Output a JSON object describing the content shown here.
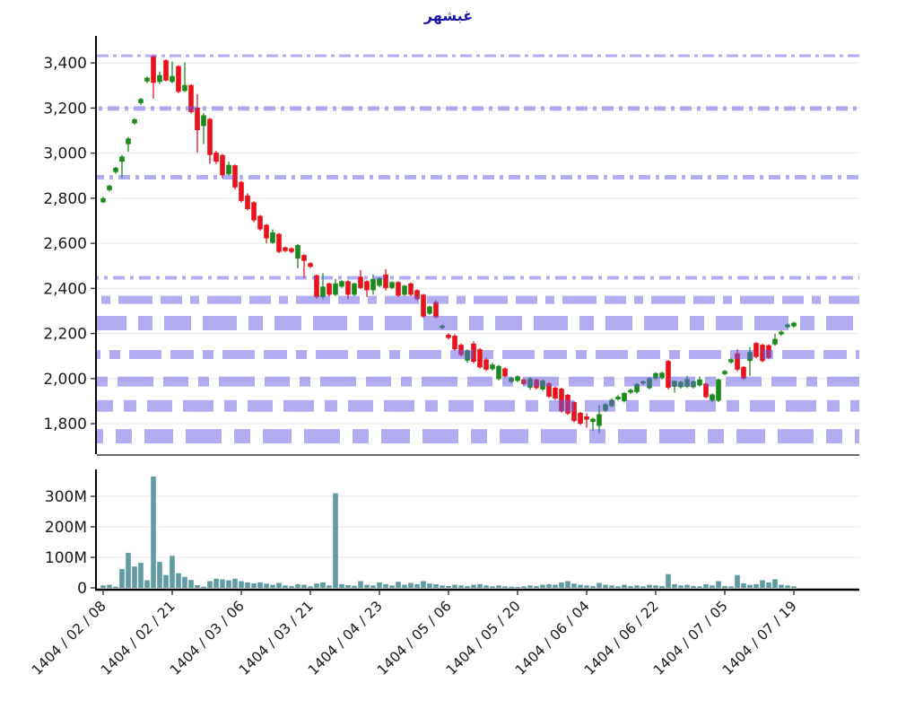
{
  "title": "غبشهر",
  "chart_data": {
    "type": "candlestick",
    "title": "غبشهر",
    "x_tick_labels": [
      "1404 / 02 / 08",
      "1404 / 02 / 21",
      "1404 / 03 / 06",
      "1404 / 03 / 21",
      "1404 / 04 / 23",
      "1404 / 05 / 06",
      "1404 / 05 / 20",
      "1404 / 06 / 04",
      "1404 / 06 / 22",
      "1404 / 07 / 05",
      "1404 / 07 / 19"
    ],
    "x_tick_indices": [
      0,
      11,
      22,
      33,
      44,
      55,
      66,
      77,
      88,
      99,
      110
    ],
    "price_axis": {
      "min": 1665,
      "max": 3520,
      "ticks": [
        {
          "v": 1800,
          "label": "1,800"
        },
        {
          "v": 2000,
          "label": "2,000"
        },
        {
          "v": 2200,
          "label": "2,200"
        },
        {
          "v": 2400,
          "label": "2,400"
        },
        {
          "v": 2600,
          "label": "2,600"
        },
        {
          "v": 2800,
          "label": "2,800"
        },
        {
          "v": 3000,
          "label": "3,000"
        },
        {
          "v": 3200,
          "label": "3,200"
        },
        {
          "v": 3400,
          "label": "3,400"
        }
      ]
    },
    "volume_axis": {
      "min": 0,
      "max": 385,
      "unit": "M",
      "ticks": [
        {
          "v": 0,
          "label": "0"
        },
        {
          "v": 100,
          "label": "100M"
        },
        {
          "v": 200,
          "label": "200M"
        },
        {
          "v": 300,
          "label": "300M"
        }
      ]
    },
    "levels": [
      {
        "price": 3432,
        "width": 3,
        "dash": "13 5 4 5"
      },
      {
        "price": 3198,
        "width": 5,
        "dash": "13 6 4 6"
      },
      {
        "price": 2893,
        "width": 5,
        "dash": "13 6 4 6"
      },
      {
        "price": 2447,
        "width": 4,
        "dash": "13 6 4 6"
      },
      {
        "price": 2349,
        "width": 9,
        "dash": "24 9 10 9 38 9"
      },
      {
        "price": 2246,
        "width": 16,
        "dash": "38 13 16 13 30 13"
      },
      {
        "price": 2107,
        "width": 10,
        "dash": "26 10 12 10 36 10"
      },
      {
        "price": 1987,
        "width": 11,
        "dash": "28 11 12 11 40 11"
      },
      {
        "price": 1879,
        "width": 13,
        "dash": "34 12 14 12 28 12"
      },
      {
        "price": 1744,
        "width": 16,
        "dash": "40 14 18 14 32 14"
      }
    ],
    "candles": [
      [
        2782,
        2806,
        2778,
        2800
      ],
      [
        2836,
        2860,
        2830,
        2855
      ],
      [
        2916,
        2940,
        2908,
        2935
      ],
      [
        2962,
        2992,
        2890,
        2985
      ],
      [
        3040,
        3072,
        3006,
        3065
      ],
      [
        3132,
        3155,
        3126,
        3150
      ],
      [
        3222,
        3245,
        3214,
        3240
      ],
      [
        3318,
        3340,
        3310,
        3335
      ],
      [
        3430,
        3436,
        3242,
        3312
      ],
      [
        3316,
        3362,
        3306,
        3346
      ],
      [
        3412,
        3416,
        3318,
        3322
      ],
      [
        3316,
        3406,
        3310,
        3342
      ],
      [
        3386,
        3390,
        3266,
        3272
      ],
      [
        3276,
        3402,
        3270,
        3302
      ],
      [
        3302,
        3306,
        3176,
        3182
      ],
      [
        3202,
        3262,
        3002,
        3102
      ],
      [
        3120,
        3178,
        3040,
        3168
      ],
      [
        3152,
        3156,
        2952,
        2992
      ],
      [
        3002,
        3010,
        2952,
        2962
      ],
      [
        2992,
        2996,
        2890,
        2902
      ],
      [
        2906,
        2962,
        2900,
        2948
      ],
      [
        2946,
        2950,
        2840,
        2848
      ],
      [
        2872,
        2878,
        2780,
        2788
      ],
      [
        2812,
        2822,
        2746,
        2752
      ],
      [
        2782,
        2786,
        2694,
        2702
      ],
      [
        2722,
        2726,
        2656,
        2662
      ],
      [
        2682,
        2686,
        2600,
        2622
      ],
      [
        2602,
        2662,
        2598,
        2648
      ],
      [
        2642,
        2646,
        2556,
        2562
      ],
      [
        2582,
        2586,
        2560,
        2566
      ],
      [
        2578,
        2582,
        2556,
        2562
      ],
      [
        2532,
        2596,
        2490,
        2592
      ],
      [
        2548,
        2552,
        2446,
        2522
      ],
      [
        2512,
        2516,
        2490,
        2496
      ],
      [
        2458,
        2462,
        2354,
        2362
      ],
      [
        2362,
        2468,
        2352,
        2408
      ],
      [
        2422,
        2426,
        2364,
        2372
      ],
      [
        2372,
        2442,
        2366,
        2422
      ],
      [
        2408,
        2436,
        2402,
        2432
      ],
      [
        2432,
        2436,
        2352,
        2372
      ],
      [
        2372,
        2426,
        2366,
        2422
      ],
      [
        2452,
        2482,
        2396,
        2402
      ],
      [
        2432,
        2436,
        2362,
        2392
      ],
      [
        2392,
        2462,
        2372,
        2442
      ],
      [
        2412,
        2450,
        2406,
        2446
      ],
      [
        2462,
        2486,
        2392,
        2402
      ],
      [
        2402,
        2432,
        2396,
        2428
      ],
      [
        2428,
        2432,
        2362,
        2368
      ],
      [
        2372,
        2416,
        2366,
        2412
      ],
      [
        2422,
        2426,
        2366,
        2372
      ],
      [
        2392,
        2396,
        2346,
        2352
      ],
      [
        2372,
        2376,
        2268,
        2275
      ],
      [
        2288,
        2324,
        2282,
        2320
      ],
      [
        2340,
        2346,
        2266,
        2272
      ],
      [
        2225,
        2240,
        2218,
        2235
      ],
      [
        2195,
        2200,
        2174,
        2180
      ],
      [
        2190,
        2196,
        2124,
        2130
      ],
      [
        2150,
        2156,
        2098,
        2105
      ],
      [
        2080,
        2130,
        2070,
        2125
      ],
      [
        2155,
        2165,
        2068,
        2075
      ],
      [
        2130,
        2136,
        2044,
        2050
      ],
      [
        2085,
        2092,
        2034,
        2040
      ],
      [
        2042,
        2070,
        2036,
        2062
      ],
      [
        1998,
        2060,
        1992,
        2056
      ],
      [
        2045,
        2050,
        2004,
        2010
      ],
      [
        1986,
        2008,
        1980,
        2004
      ],
      [
        1990,
        2014,
        1984,
        2010
      ],
      [
        1996,
        2000,
        1970,
        1976
      ],
      [
        1960,
        2006,
        1950,
        2000
      ],
      [
        1996,
        2000,
        1952,
        1958
      ],
      [
        1952,
        1996,
        1946,
        1992
      ],
      [
        1980,
        1984,
        1914,
        1920
      ],
      [
        1960,
        1964,
        1906,
        1912
      ],
      [
        1955,
        1960,
        1848,
        1855
      ],
      [
        1928,
        1932,
        1838,
        1845
      ],
      [
        1896,
        1900,
        1806,
        1812
      ],
      [
        1848,
        1852,
        1794,
        1800
      ],
      [
        1832,
        1846,
        1782,
        1818
      ],
      [
        1808,
        1826,
        1768,
        1822
      ],
      [
        1790,
        1882,
        1758,
        1842
      ],
      [
        1858,
        1892,
        1852,
        1886
      ],
      [
        1878,
        1912,
        1872,
        1906
      ],
      [
        1908,
        1926,
        1902,
        1920
      ],
      [
        1900,
        1940,
        1894,
        1936
      ],
      [
        1938,
        1956,
        1932,
        1950
      ],
      [
        1940,
        1980,
        1934,
        1976
      ],
      [
        1978,
        1992,
        1972,
        1988
      ],
      [
        1958,
        2006,
        1952,
        2002
      ],
      [
        2000,
        2028,
        1994,
        2024
      ],
      [
        2002,
        2030,
        1996,
        2026
      ],
      [
        2078,
        2082,
        1952,
        1960
      ],
      [
        1964,
        1994,
        1938,
        1990
      ],
      [
        1962,
        1990,
        1956,
        1986
      ],
      [
        1964,
        2012,
        1958,
        1998
      ],
      [
        1962,
        1992,
        1956,
        1988
      ],
      [
        1970,
        2010,
        1964,
        1996
      ],
      [
        1978,
        1982,
        1912,
        1918
      ],
      [
        1902,
        1934,
        1896,
        1930
      ],
      [
        1902,
        2000,
        1896,
        1996
      ],
      [
        2020,
        2038,
        2014,
        2034
      ],
      [
        2072,
        2090,
        2066,
        2086
      ],
      [
        2112,
        2130,
        2032,
        2040
      ],
      [
        2052,
        2056,
        1996,
        2000
      ],
      [
        2078,
        2140,
        2012,
        2118
      ],
      [
        2158,
        2162,
        2090,
        2096
      ],
      [
        2150,
        2154,
        2072,
        2078
      ],
      [
        2148,
        2152,
        2086,
        2092
      ],
      [
        2152,
        2198,
        2146,
        2176
      ],
      [
        2196,
        2214,
        2190,
        2208
      ],
      [
        2228,
        2244,
        2222,
        2240
      ],
      [
        2232,
        2252,
        2226,
        2248
      ]
    ],
    "volumes_millions": [
      8,
      10,
      4,
      62,
      115,
      70,
      82,
      25,
      365,
      85,
      42,
      105,
      48,
      36,
      26,
      9,
      4,
      22,
      30,
      28,
      25,
      30,
      22,
      18,
      15,
      18,
      14,
      10,
      16,
      8,
      6,
      12,
      10,
      5,
      14,
      18,
      8,
      310,
      12,
      9,
      7,
      22,
      10,
      8,
      18,
      12,
      8,
      20,
      10,
      16,
      12,
      22,
      14,
      12,
      8,
      6,
      10,
      8,
      6,
      10,
      12,
      8,
      5,
      8,
      5,
      4,
      3,
      5,
      8,
      6,
      10,
      12,
      10,
      18,
      22,
      14,
      10,
      8,
      6,
      16,
      10,
      8,
      5,
      10,
      6,
      8,
      5,
      10,
      8,
      6,
      45,
      12,
      8,
      10,
      6,
      5,
      12,
      8,
      22,
      6,
      5,
      42,
      15,
      10,
      12,
      25,
      18,
      28,
      10,
      8,
      5
    ],
    "colors": {
      "up": "#1b8a1b",
      "down": "#e8111c",
      "volume": "#619ca3",
      "level": "rgba(102,92,226,0.5)",
      "title": "#1c16a8",
      "grid": "#ebebeb",
      "spine": "#000000",
      "panel_divider": "#555555"
    },
    "legend": "none",
    "grid": "horizontal"
  }
}
